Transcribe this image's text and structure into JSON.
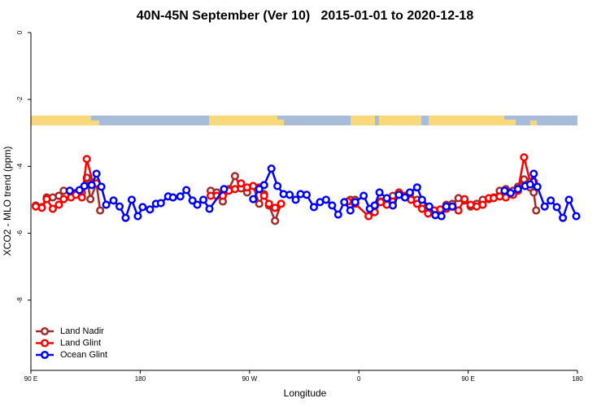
{
  "chart_data": {
    "type": "line",
    "title": "40N-45N September (Ver 10)   2015-01-01 to 2020-12-18",
    "x_label": "Longitude",
    "y_label": "XCO2 - MLO trend (ppm)",
    "xlim": [
      90,
      540
    ],
    "ylim": [
      -10.1,
      0
    ],
    "xticks": [
      {
        "value": 90,
        "label": "90 E"
      },
      180,
      {
        "value": 270,
        "label": "90 W"
      },
      {
        "value": 360,
        "label": "0"
      },
      {
        "value": 450,
        "label": "90 E"
      },
      {
        "value": 540,
        "label": "180"
      }
    ],
    "yticks": [
      0,
      -2,
      -4,
      -6,
      -8
    ],
    "legend": "bottom-left",
    "series": [
      {
        "name": "Land Nadir",
        "color": "#a52a2a",
        "x": [
          94,
          99,
          103,
          108,
          113,
          117,
          123,
          127,
          132,
          136,
          139,
          144,
          147,
          238,
          243,
          248,
          253,
          258,
          263,
          268,
          273,
          278,
          282,
          286,
          291,
          296,
          353,
          357,
          378,
          383,
          388,
          393,
          398,
          402,
          408,
          412,
          417,
          422,
          427,
          432,
          437,
          442,
          447,
          452,
          457,
          462,
          467,
          471,
          476,
          481,
          487,
          491,
          496,
          501,
          504,
          506
        ],
        "values": [
          -5.17,
          -5.22,
          -4.93,
          -4.93,
          -4.88,
          -4.73,
          -4.8,
          -4.8,
          -4.78,
          -4.34,
          -4.98,
          -4.51,
          -5.32,
          -4.73,
          -4.78,
          -5.05,
          -4.68,
          -4.29,
          -4.66,
          -4.78,
          -4.59,
          -5.12,
          -4.83,
          -5.17,
          -5.63,
          -5.12,
          -5.0,
          -5.0,
          -5.05,
          -5.02,
          -4.88,
          -4.83,
          -4.93,
          -4.83,
          -5.0,
          -5.12,
          -5.32,
          -5.39,
          -5.32,
          -5.15,
          -5.12,
          -4.95,
          -5.02,
          -5.2,
          -5.12,
          -5.0,
          -4.98,
          -4.93,
          -4.73,
          -4.68,
          -4.73,
          -4.61,
          -4.39,
          -4.63,
          -4.78,
          -5.32
        ]
      },
      {
        "name": "Land Glint",
        "color": "#ff0000",
        "x": [
          94,
          99,
          103,
          108,
          113,
          117,
          123,
          127,
          132,
          136,
          141,
          144,
          238,
          243,
          248,
          253,
          258,
          263,
          268,
          273,
          278,
          282,
          286,
          291,
          296,
          351,
          357,
          368,
          373,
          378,
          383,
          388,
          393,
          398,
          403,
          408,
          412,
          417,
          422,
          427,
          432,
          437,
          442,
          447,
          452,
          457,
          462,
          467,
          471,
          476,
          481,
          487,
          491,
          496,
          501,
          504
        ],
        "values": [
          -5.2,
          -5.24,
          -4.98,
          -5.27,
          -5.15,
          -4.98,
          -4.93,
          -4.85,
          -4.93,
          -3.78,
          -4.49,
          -4.51,
          -4.88,
          -4.88,
          -4.88,
          -4.73,
          -4.68,
          -4.51,
          -4.63,
          -4.59,
          -4.63,
          -4.88,
          -5.12,
          -5.24,
          -5.12,
          -5.05,
          -5.12,
          -5.49,
          -5.37,
          -5.07,
          -5.15,
          -5.05,
          -4.78,
          -4.88,
          -5.0,
          -5.12,
          -5.27,
          -5.41,
          -5.32,
          -5.29,
          -5.27,
          -5.2,
          -5.32,
          -4.98,
          -5.15,
          -5.2,
          -5.15,
          -4.95,
          -4.95,
          -4.9,
          -4.93,
          -4.85,
          -4.73,
          -3.73,
          -4.46,
          -4.46
        ]
      },
      {
        "name": "Ocean Glint",
        "color": "#0000ff",
        "x": [
          122,
          130,
          134,
          140,
          144,
          148,
          152,
          158,
          163,
          168,
          173,
          178,
          182,
          188,
          193,
          197,
          203,
          207,
          213,
          218,
          223,
          227,
          232,
          237,
          249,
          273,
          278,
          282,
          288,
          293,
          298,
          303,
          308,
          312,
          317,
          323,
          328,
          333,
          338,
          343,
          348,
          353,
          357,
          364,
          369,
          373,
          377,
          383,
          388,
          393,
          398,
          402,
          408,
          412,
          418,
          423,
          428,
          432,
          437,
          480,
          485,
          491,
          497,
          501,
          504,
          507,
          513,
          518,
          523,
          528,
          533,
          539
        ],
        "values": [
          -4.73,
          -4.71,
          -4.59,
          -4.56,
          -4.22,
          -4.61,
          -5.15,
          -5.02,
          -5.2,
          -5.54,
          -5.0,
          -5.49,
          -5.22,
          -5.29,
          -5.12,
          -5.1,
          -4.9,
          -4.93,
          -4.9,
          -4.71,
          -5.02,
          -5.15,
          -5.0,
          -5.27,
          -4.68,
          -4.98,
          -4.68,
          -4.56,
          -4.07,
          -4.59,
          -4.83,
          -4.85,
          -5.0,
          -4.83,
          -4.85,
          -5.22,
          -5.07,
          -5.0,
          -5.17,
          -5.44,
          -5.07,
          -5.32,
          -5.07,
          -4.88,
          -5.27,
          -5.17,
          -4.78,
          -4.95,
          -5.17,
          -4.85,
          -4.93,
          -4.78,
          -4.63,
          -5.0,
          -5.2,
          -5.46,
          -5.49,
          -5.2,
          -5.2,
          -4.73,
          -4.8,
          -4.68,
          -4.59,
          -4.54,
          -4.22,
          -4.61,
          -5.2,
          -5.02,
          -5.22,
          -5.54,
          -5.0,
          -5.49
        ]
      }
    ]
  }
}
